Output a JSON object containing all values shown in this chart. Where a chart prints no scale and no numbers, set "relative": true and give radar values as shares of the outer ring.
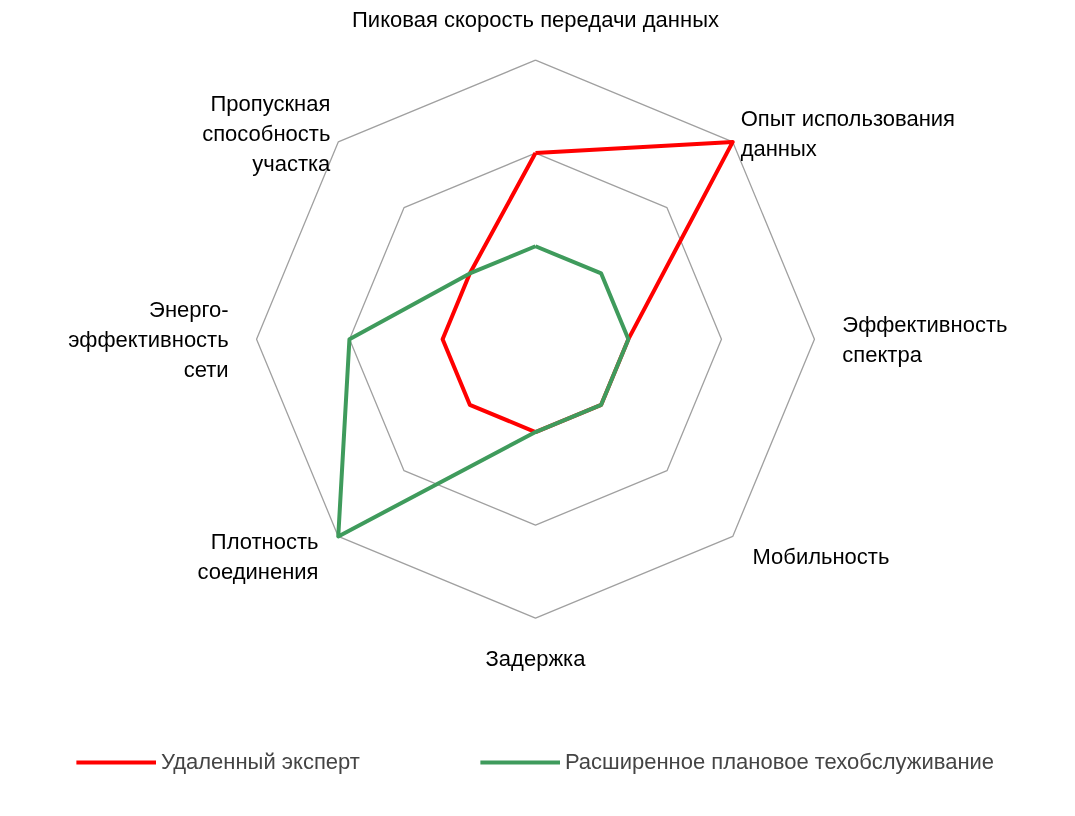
{
  "chart_data": {
    "type": "radar",
    "relative": true,
    "grid": true,
    "legend": "bottom",
    "categories": [
      "Пиковая скорость передачи данных",
      "Опыт использования\nданных",
      "Эффективность\nспектра",
      "Мобильность",
      "Задержка",
      "Плотность\nсоединения",
      "Энерго-\nэффективность\nсети",
      "Пропускная\nспособность\nучастка"
    ],
    "series": [
      {
        "name": "Удаленный эксперт",
        "color": "#ff0000",
        "values": [
          0.667,
          1,
          0.333,
          0.333,
          0.333,
          0.333,
          0.333,
          0.333
        ]
      },
      {
        "name": "Расширенное плановое техобслуживание",
        "color": "#3f9b5c",
        "values": [
          0.333,
          0.333,
          0.333,
          0.333,
          0.333,
          1,
          0.667,
          0.333
        ]
      }
    ]
  }
}
